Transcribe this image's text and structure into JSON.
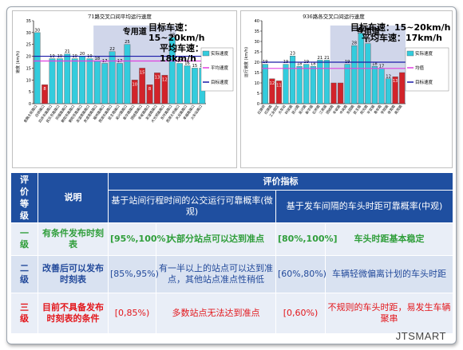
{
  "colors": {
    "cyan": "#33ccdd",
    "red": "#d2232a",
    "avg_line": "#e040e0",
    "target_line": "#1a1aa8",
    "band": "#aab4d8",
    "header_bg": "#1f4fa0",
    "green_text": "#2f9e3a",
    "blue_text": "#234a9b",
    "red_text": "#e3161b"
  },
  "chart_data": [
    {
      "type": "bar",
      "title": "71路交叉口间平均运行速度",
      "ylabel": "速度 (km/h)",
      "ylim": [
        0,
        35
      ],
      "yticks": [
        0,
        5,
        10,
        15,
        20,
        25,
        30,
        35
      ],
      "band_label": "专用道",
      "band_range": [
        8,
        18
      ],
      "categories": [
        "金融大街路口",
        "白桥路口",
        "四井东路路口",
        "民乐东路路口",
        "同福路路口",
        "朝阳东路路口",
        "朝阳东路路口",
        "友谊南路路口",
        "友谊南路路口",
        "福州路路口",
        "西湖东路路口",
        "民主路路口",
        "吴兴路路口",
        "新华路路口",
        "团结路路口",
        "丰收路路口",
        "友谊路路口",
        "大光明路路口",
        "东环路路口",
        "西湖大桥路口",
        "天龙路路口",
        "幸福路路口",
        "火车站路口"
      ],
      "values": [
        30,
        8,
        19,
        19,
        21,
        19,
        20,
        19,
        18,
        17,
        22,
        17,
        25,
        10,
        15,
        8,
        13,
        12,
        28,
        17,
        16,
        15,
        15
      ],
      "bar_labels": [
        "30",
        "8",
        "19",
        "19",
        "21",
        "19",
        "20",
        "19",
        "18",
        "17",
        "22",
        "17",
        "25",
        "10",
        "15",
        "8",
        "13",
        "12",
        "28",
        "17",
        "16",
        "15",
        "15"
      ],
      "bar_colors": [
        "cyan",
        "red",
        "cyan",
        "cyan",
        "cyan",
        "cyan",
        "cyan",
        "cyan",
        "cyan",
        "cyan",
        "cyan",
        "cyan",
        "cyan",
        "red",
        "red",
        "red",
        "red",
        "red",
        "cyan",
        "cyan",
        "cyan",
        "cyan",
        "cyan"
      ],
      "avg_speed": 18,
      "target_speed": 20,
      "legend": [
        "实际速度",
        "平均速度",
        "目标速度"
      ],
      "target_text": "目标车速：15~20km/h",
      "avg_text": "平均车速：18km/h"
    },
    {
      "type": "bar",
      "title": "936路各交叉口间运行速度",
      "ylabel": "运行速度 (km/h)",
      "ylim": [
        0,
        40
      ],
      "yticks": [
        0,
        5,
        10,
        15,
        20,
        25,
        30,
        35,
        40
      ],
      "band_label": "专用道",
      "band_range": [
        10,
        20
      ],
      "categories": [
        "红旗桥",
        "红旗路",
        "工业园区",
        "火车站",
        "科技路",
        "民兴路",
        "吴兴路",
        "新华路",
        "石桥路",
        "江南路",
        "团结路",
        "丰收路",
        "中央路",
        "东园路",
        "民主路",
        "阳光路",
        "平安路",
        "青年路",
        "学院路",
        "体育路",
        "南苑路"
      ],
      "values": [
        19,
        12,
        11,
        19,
        23,
        18,
        19,
        18,
        21,
        21,
        10,
        10,
        19,
        28,
        34,
        29,
        18,
        17,
        12,
        13,
        15
      ],
      "bar_labels": [
        "19",
        "12",
        "11",
        "19",
        "23",
        "18",
        "19",
        "18",
        "21",
        "21",
        "",
        "",
        "19",
        "28",
        "34",
        "29",
        "18",
        "17",
        "12",
        "13",
        ""
      ],
      "bar_colors": [
        "cyan",
        "red",
        "red",
        "cyan",
        "cyan",
        "cyan",
        "cyan",
        "cyan",
        "cyan",
        "cyan",
        "red",
        "red",
        "cyan",
        "cyan",
        "cyan",
        "cyan",
        "cyan",
        "cyan",
        "cyan",
        "red",
        "red"
      ],
      "avg_speed": 17,
      "target_speed": 20,
      "legend": [
        "实际速度",
        "均值",
        "目标速度"
      ],
      "target_text": "目标车速：15~20km/h",
      "avg_text": "平均车速：17km/h"
    }
  ],
  "table": {
    "col_level": "评价等级",
    "col_desc": "说明",
    "col_indicator": "评价指标",
    "sub_micro": "基于站间行程时间的公交运行可靠概率(微观)",
    "sub_macro": "基于发车间隔的车头时距可靠概率(中观)",
    "rows": [
      {
        "level": "一级",
        "desc": "有条件发布时刻表",
        "micro_range": "[95%,100%]",
        "micro_text": "大部分站点可以达到准点",
        "macro_range": "[80%,100%]",
        "macro_text": "车头时距基本稳定",
        "tone": "green"
      },
      {
        "level": "二级",
        "desc": "改善后可以发布时刻表",
        "micro_range": "[85%,95%)",
        "micro_text": "有一半以上的站点可以达到准点，其他站点准点性稍低",
        "macro_range": "[60%,80%)",
        "macro_text": "车辆轻微偏离计划的车头时距",
        "tone": "blue"
      },
      {
        "level": "三级",
        "desc": "目前不具备发布时刻表的条件",
        "micro_range": "[0,85%)",
        "micro_text": "多数站点无法达到准点",
        "macro_range": "[0,60%)",
        "macro_text": "不规则的车头时距，易发生车辆聚串",
        "tone": "red"
      }
    ]
  },
  "logo": "JTSMART"
}
